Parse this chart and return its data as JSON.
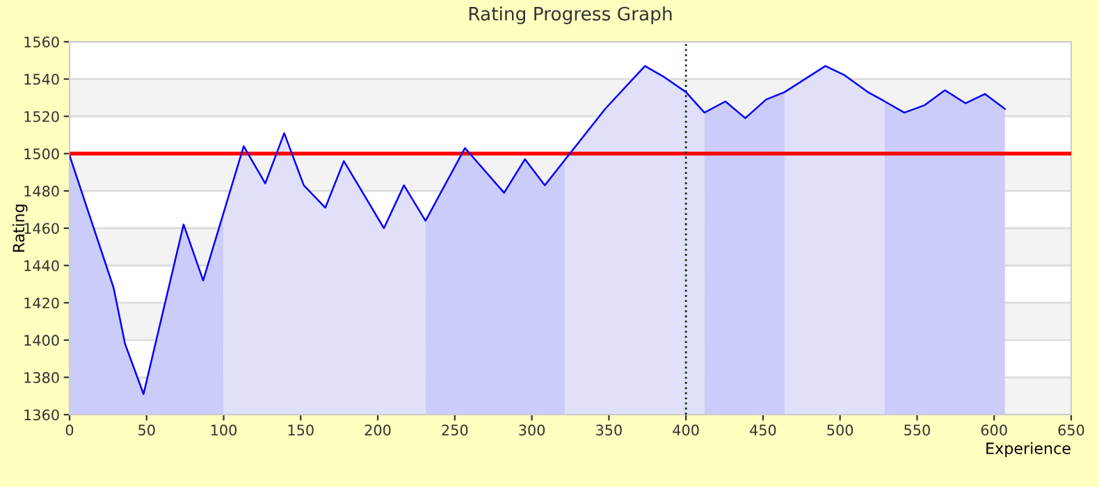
{
  "chart_data": {
    "type": "area",
    "title": "Rating Progress Graph",
    "xlabel": "Experience",
    "ylabel": "Rating",
    "series": [
      {
        "color": "#ccccfa",
        "x": [
          0,
          28.6,
          36,
          48,
          74,
          86.7,
          100
        ],
        "values": [
          1499,
          1428,
          1398,
          1371,
          1462,
          1432,
          1468
        ]
      },
      {
        "color": "#e0e0fa",
        "x": [
          100,
          113,
          127,
          139.3,
          152,
          166,
          178,
          204,
          217,
          231
        ],
        "values": [
          1468,
          1504,
          1484,
          1511,
          1483,
          1471,
          1496,
          1460,
          1483,
          1464
        ]
      },
      {
        "color": "#ccccfa",
        "x": [
          231,
          256.6,
          282,
          295.5,
          308.4,
          321.5
        ],
        "values": [
          1464,
          1503,
          1479,
          1497,
          1483,
          1497
        ]
      },
      {
        "color": "#e0e0fa",
        "x": [
          321.5,
          347.6,
          373.4,
          386,
          400,
          412
        ],
        "values": [
          1497,
          1524,
          1547,
          1541,
          1533,
          1522
        ]
      },
      {
        "color": "#ccccfa",
        "x": [
          412,
          425.6,
          438.5,
          452,
          464
        ],
        "values": [
          1522,
          1528,
          1519,
          1529,
          1533
        ]
      },
      {
        "color": "#e0e0fa",
        "x": [
          464,
          490.5,
          503,
          518,
          529
        ],
        "values": [
          1533,
          1547,
          1542,
          1533,
          1528
        ]
      },
      {
        "color": "#ccccfa",
        "x": [
          529,
          541.7,
          555,
          568,
          581.5,
          594,
          607
        ],
        "values": [
          1528,
          1522,
          1526,
          1534,
          1527,
          1532,
          1524
        ]
      },
      {
        "type": "line",
        "color": "#0000ff",
        "x": [
          0,
          28.6,
          36,
          48,
          74,
          86.7,
          113,
          127,
          139.3,
          152,
          166,
          178,
          204,
          217,
          231,
          256.6,
          282,
          295.5,
          308.4,
          347.6,
          373.4,
          386,
          400,
          412,
          425.6,
          438.5,
          452,
          464,
          490.5,
          503,
          518,
          529,
          541.7,
          555,
          568,
          581.5,
          594,
          607
        ],
        "values": [
          1499,
          1428,
          1398,
          1371,
          1462,
          1432,
          1504,
          1484,
          1511,
          1483,
          1471,
          1496,
          1460,
          1483,
          1464,
          1503,
          1479,
          1497,
          1483,
          1524,
          1547,
          1541,
          1533,
          1522,
          1528,
          1519,
          1529,
          1533,
          1547,
          1542,
          1533,
          1528,
          1522,
          1526,
          1534,
          1527,
          1532,
          1524
        ]
      }
    ],
    "xlim": [
      0,
      650
    ],
    "xticks": [
      0,
      50,
      100,
      150,
      200,
      250,
      300,
      350,
      400,
      450,
      500,
      550,
      600,
      650
    ],
    "ylim": [
      1360,
      1560
    ],
    "yticks": [
      1360,
      1380,
      1400,
      1420,
      1440,
      1460,
      1480,
      1500,
      1520,
      1540,
      1560
    ],
    "ref_lines": [
      {
        "axis": "y",
        "value": 1500,
        "color": "#ff0000",
        "line_style": "solid"
      },
      {
        "axis": "x",
        "value": 400,
        "color": "#003300",
        "line_style": "dotted"
      }
    ],
    "grid": "y",
    "legend": false,
    "marker": "none"
  }
}
